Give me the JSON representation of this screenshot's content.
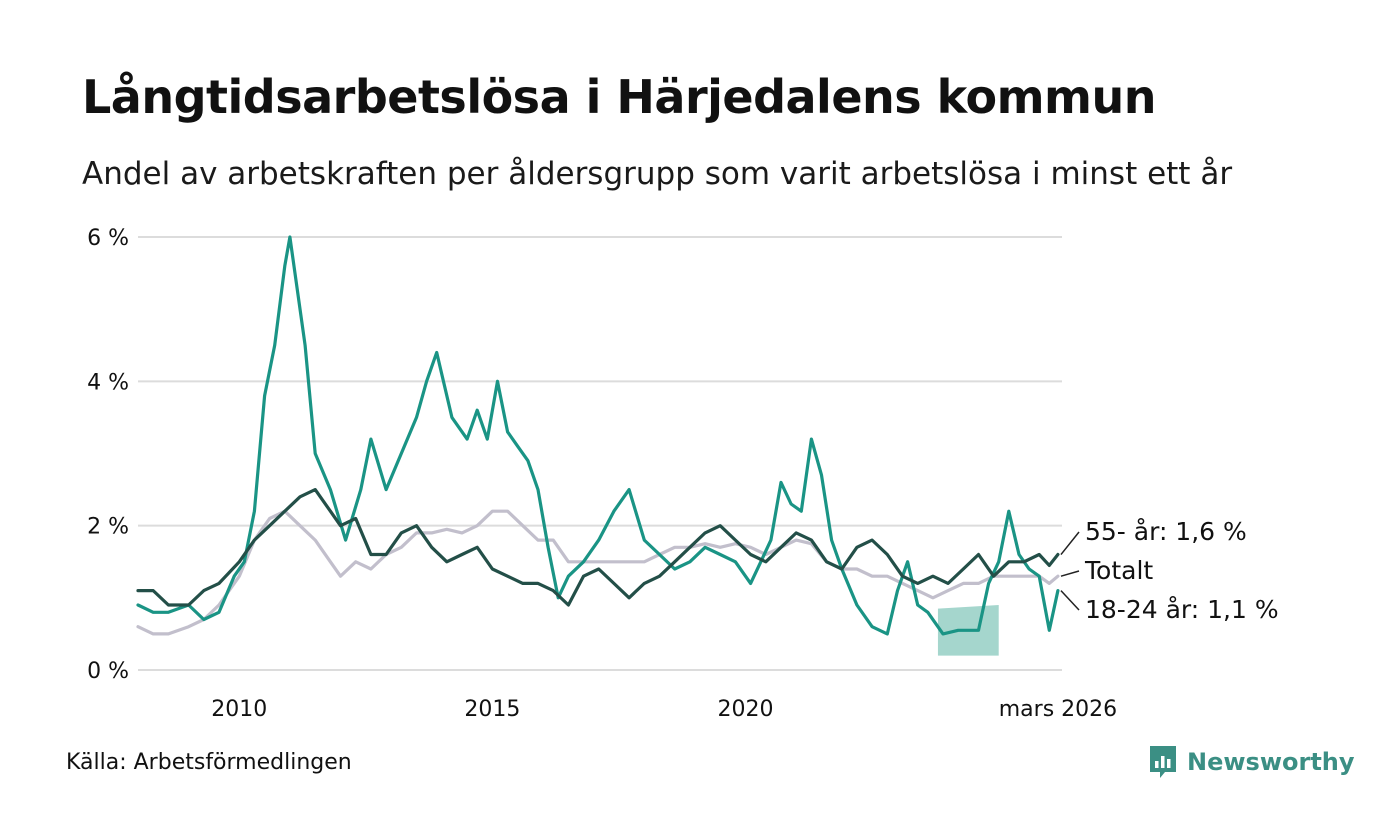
{
  "header": {
    "title": "Långtidsarbetslösa i Härjedalens kommun",
    "subtitle": "Andel av arbetskraften per åldersgrupp som varit arbetslösa i minst ett år"
  },
  "footer": {
    "source": "Källa: Arbetsförmedlingen",
    "brand": "Newsworthy"
  },
  "colors": {
    "youth": "#1a9485",
    "senior": "#234f48",
    "total": "#c2bfcc",
    "band": "#8fccc1",
    "grid": "#dcdcdc",
    "brand": "#3b8f84"
  },
  "chart_data": {
    "type": "line",
    "title": "Långtidsarbetslösa i Härjedalens kommun",
    "subtitle": "Andel av arbetskraften per åldersgrupp som varit arbetslösa i minst ett år",
    "xlabel": "",
    "ylabel": "",
    "xlim": [
      2008.0,
      2026.25
    ],
    "ylim": [
      0,
      6
    ],
    "y_ticks": [
      0,
      2,
      4,
      6
    ],
    "y_tick_labels": [
      "0 %",
      "2 %",
      "4 %",
      "6 %"
    ],
    "x_ticks": [
      2010,
      2015,
      2020,
      2026.17
    ],
    "x_tick_labels": [
      "2010",
      "2015",
      "2020",
      "mars 2026"
    ],
    "grid": true,
    "series": [
      {
        "name": "Totalt",
        "label": "Totalt",
        "x": [
          2008.0,
          2008.3,
          2008.6,
          2009.0,
          2009.3,
          2009.6,
          2010.0,
          2010.3,
          2010.6,
          2010.9,
          2011.2,
          2011.5,
          2011.8,
          2012.0,
          2012.3,
          2012.6,
          2012.9,
          2013.2,
          2013.5,
          2013.8,
          2014.1,
          2014.4,
          2014.7,
          2015.0,
          2015.3,
          2015.6,
          2015.9,
          2016.2,
          2016.5,
          2016.8,
          2017.1,
          2017.4,
          2017.7,
          2018.0,
          2018.3,
          2018.6,
          2018.9,
          2019.2,
          2019.5,
          2019.8,
          2020.1,
          2020.4,
          2020.7,
          2021.0,
          2021.3,
          2021.6,
          2021.9,
          2022.2,
          2022.5,
          2022.8,
          2023.1,
          2023.4,
          2023.7,
          2024.0,
          2024.3,
          2024.6,
          2024.9,
          2025.2,
          2025.5,
          2025.8,
          2026.0,
          2026.17
        ],
        "values": [
          0.6,
          0.5,
          0.5,
          0.6,
          0.7,
          0.9,
          1.3,
          1.8,
          2.1,
          2.2,
          2.0,
          1.8,
          1.5,
          1.3,
          1.5,
          1.4,
          1.6,
          1.7,
          1.9,
          1.9,
          1.95,
          1.9,
          2.0,
          2.2,
          2.2,
          2.0,
          1.8,
          1.8,
          1.5,
          1.5,
          1.5,
          1.5,
          1.5,
          1.5,
          1.6,
          1.7,
          1.7,
          1.75,
          1.7,
          1.75,
          1.7,
          1.6,
          1.7,
          1.8,
          1.75,
          1.5,
          1.4,
          1.4,
          1.3,
          1.3,
          1.2,
          1.1,
          1.0,
          1.1,
          1.2,
          1.2,
          1.3,
          1.3,
          1.3,
          1.3,
          1.2,
          1.3
        ],
        "band": {
          "x": [],
          "low": [],
          "high": []
        }
      },
      {
        "name": "55- år",
        "label": "55- år: 1,6 %",
        "x": [
          2008.0,
          2008.3,
          2008.6,
          2009.0,
          2009.3,
          2009.6,
          2010.0,
          2010.3,
          2010.6,
          2010.9,
          2011.2,
          2011.5,
          2011.8,
          2012.0,
          2012.3,
          2012.6,
          2012.9,
          2013.2,
          2013.5,
          2013.8,
          2014.1,
          2014.4,
          2014.7,
          2015.0,
          2015.3,
          2015.6,
          2015.9,
          2016.2,
          2016.5,
          2016.8,
          2017.1,
          2017.4,
          2017.7,
          2018.0,
          2018.3,
          2018.6,
          2018.9,
          2019.2,
          2019.5,
          2019.8,
          2020.1,
          2020.4,
          2020.7,
          2021.0,
          2021.3,
          2021.6,
          2021.9,
          2022.2,
          2022.5,
          2022.8,
          2023.1,
          2023.4,
          2023.7,
          2024.0,
          2024.3,
          2024.6,
          2024.9,
          2025.2,
          2025.5,
          2025.8,
          2026.0,
          2026.17
        ],
        "values": [
          1.1,
          1.1,
          0.9,
          0.9,
          1.1,
          1.2,
          1.5,
          1.8,
          2.0,
          2.2,
          2.4,
          2.5,
          2.2,
          2.0,
          2.1,
          1.6,
          1.6,
          1.9,
          2.0,
          1.7,
          1.5,
          1.6,
          1.7,
          1.4,
          1.3,
          1.2,
          1.2,
          1.1,
          0.9,
          1.3,
          1.4,
          1.2,
          1.0,
          1.2,
          1.3,
          1.5,
          1.7,
          1.9,
          2.0,
          1.8,
          1.6,
          1.5,
          1.7,
          1.9,
          1.8,
          1.5,
          1.4,
          1.7,
          1.8,
          1.6,
          1.3,
          1.2,
          1.3,
          1.2,
          1.4,
          1.6,
          1.3,
          1.5,
          1.5,
          1.6,
          1.45,
          1.6
        ],
        "band": {
          "x": [],
          "low": [],
          "high": []
        }
      },
      {
        "name": "18-24 år",
        "label": "18-24 år: 1,1 %",
        "x": [
          2008.0,
          2008.3,
          2008.6,
          2009.0,
          2009.3,
          2009.6,
          2009.9,
          2010.1,
          2010.3,
          2010.5,
          2010.7,
          2010.9,
          2011.0,
          2011.3,
          2011.5,
          2011.8,
          2012.1,
          2012.4,
          2012.6,
          2012.9,
          2013.2,
          2013.5,
          2013.7,
          2013.9,
          2014.2,
          2014.5,
          2014.7,
          2014.9,
          2015.1,
          2015.3,
          2015.5,
          2015.7,
          2015.9,
          2016.1,
          2016.3,
          2016.5,
          2016.8,
          2017.1,
          2017.4,
          2017.7,
          2018.0,
          2018.3,
          2018.6,
          2018.9,
          2019.2,
          2019.5,
          2019.8,
          2020.1,
          2020.3,
          2020.5,
          2020.7,
          2020.9,
          2021.1,
          2021.3,
          2021.5,
          2021.7,
          2021.9,
          2022.2,
          2022.5,
          2022.8,
          2023.0,
          2023.2,
          2023.4,
          2023.6,
          2023.9,
          2024.2,
          2024.4,
          2024.6,
          2024.8,
          2025.0,
          2025.2,
          2025.4,
          2025.6,
          2025.8,
          2026.0,
          2026.17
        ],
        "values": [
          0.9,
          0.8,
          0.8,
          0.9,
          0.7,
          0.8,
          1.3,
          1.5,
          2.2,
          3.8,
          4.5,
          5.6,
          6.0,
          4.5,
          3.0,
          2.5,
          1.8,
          2.5,
          3.2,
          2.5,
          3.0,
          3.5,
          4.0,
          4.4,
          3.5,
          3.2,
          3.6,
          3.2,
          4.0,
          3.3,
          3.1,
          2.9,
          2.5,
          1.7,
          1.0,
          1.3,
          1.5,
          1.8,
          2.2,
          2.5,
          1.8,
          1.6,
          1.4,
          1.5,
          1.7,
          1.6,
          1.5,
          1.2,
          1.5,
          1.8,
          2.6,
          2.3,
          2.2,
          3.2,
          2.7,
          1.8,
          1.4,
          0.9,
          0.6,
          0.5,
          1.1,
          1.5,
          0.9,
          0.8,
          0.5,
          0.55,
          0.55,
          0.55,
          1.2,
          1.5,
          2.2,
          1.6,
          1.4,
          1.3,
          0.55,
          1.1
        ],
        "band": {
          "x": [
            2023.8,
            2025.0
          ],
          "low": [
            0.2,
            0.2
          ],
          "high": [
            0.85,
            0.9
          ]
        }
      }
    ]
  }
}
